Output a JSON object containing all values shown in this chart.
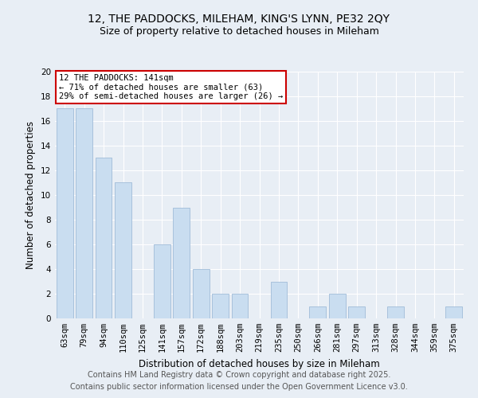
{
  "title": "12, THE PADDOCKS, MILEHAM, KING'S LYNN, PE32 2QY",
  "subtitle": "Size of property relative to detached houses in Mileham",
  "xlabel": "Distribution of detached houses by size in Mileham",
  "ylabel": "Number of detached properties",
  "categories": [
    "63sqm",
    "79sqm",
    "94sqm",
    "110sqm",
    "125sqm",
    "141sqm",
    "157sqm",
    "172sqm",
    "188sqm",
    "203sqm",
    "219sqm",
    "235sqm",
    "250sqm",
    "266sqm",
    "281sqm",
    "297sqm",
    "313sqm",
    "328sqm",
    "344sqm",
    "359sqm",
    "375sqm"
  ],
  "values": [
    17,
    17,
    13,
    11,
    0,
    6,
    9,
    4,
    2,
    2,
    0,
    3,
    0,
    1,
    2,
    1,
    0,
    1,
    0,
    0,
    1
  ],
  "highlight_index": 5,
  "bar_color_normal": "#c9ddf0",
  "bar_edge_color": "#a0bcd8",
  "annotation_title": "12 THE PADDOCKS: 141sqm",
  "annotation_line1": "← 71% of detached houses are smaller (63)",
  "annotation_line2": "29% of semi-detached houses are larger (26) →",
  "annotation_box_color": "#ffffff",
  "annotation_box_edge": "#cc0000",
  "footer1": "Contains HM Land Registry data © Crown copyright and database right 2025.",
  "footer2": "Contains public sector information licensed under the Open Government Licence v3.0.",
  "ylim": [
    0,
    20
  ],
  "yticks": [
    0,
    2,
    4,
    6,
    8,
    10,
    12,
    14,
    16,
    18,
    20
  ],
  "bg_color": "#e8eef5",
  "plot_bg_color": "#e8eef5",
  "grid_color": "#ffffff",
  "title_fontsize": 10,
  "subtitle_fontsize": 9,
  "axis_label_fontsize": 8.5,
  "tick_fontsize": 7.5,
  "annotation_fontsize": 7.5,
  "footer_fontsize": 7
}
